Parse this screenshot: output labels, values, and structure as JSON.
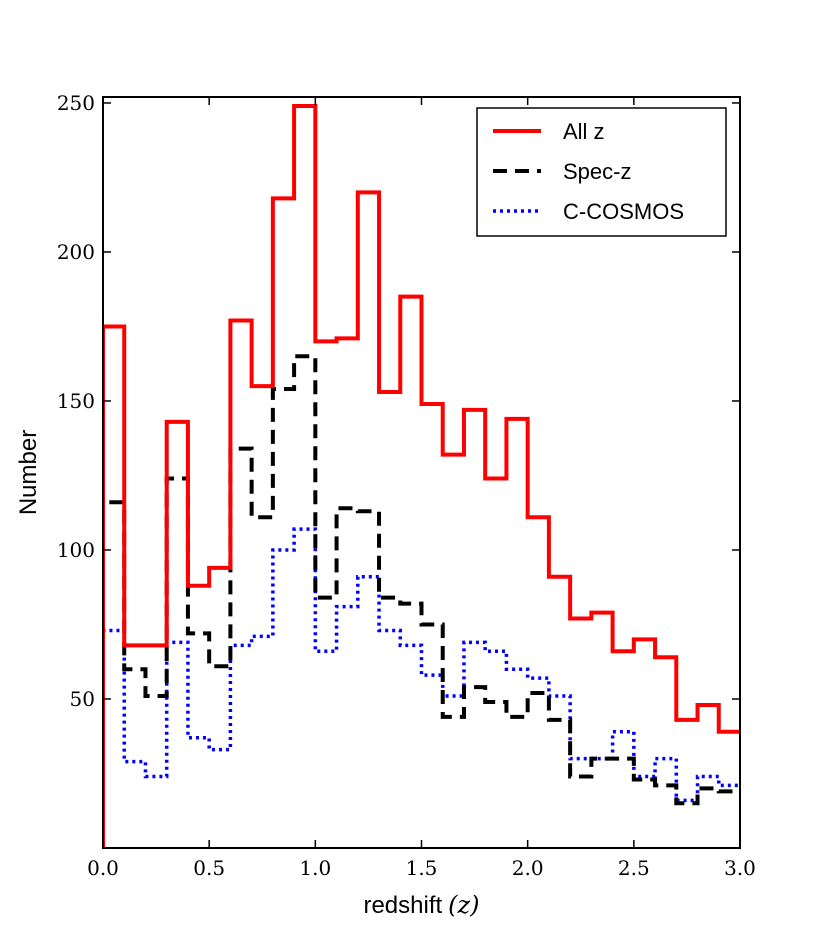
{
  "chart_data": {
    "type": "line",
    "subtype": "step-histogram",
    "title": "",
    "xlabel_text": "redshift",
    "xlabel_symbol": "(z)",
    "ylabel": "Number",
    "xlim": [
      0.0,
      3.0
    ],
    "ylim": [
      0,
      252
    ],
    "xticks": [
      0.0,
      0.5,
      1.0,
      1.5,
      2.0,
      2.5,
      3.0
    ],
    "xtick_labels": [
      "0.0",
      "0.5",
      "1.0",
      "1.5",
      "2.0",
      "2.5",
      "3.0"
    ],
    "yticks": [
      50,
      100,
      150,
      200,
      250
    ],
    "ytick_labels": [
      "50",
      "100",
      "150",
      "200",
      "250"
    ],
    "bin_edges": [
      0.0,
      0.1,
      0.2,
      0.3,
      0.4,
      0.5,
      0.6,
      0.7,
      0.8,
      0.9,
      1.0,
      1.1,
      1.2,
      1.3,
      1.4,
      1.5,
      1.6,
      1.7,
      1.8,
      1.9,
      2.0,
      2.1,
      2.2,
      2.3,
      2.4,
      2.5,
      2.6,
      2.7,
      2.8,
      2.9,
      3.0
    ],
    "legend_position": "top-right",
    "series": [
      {
        "name": "All z",
        "color": "#ff0000",
        "style": "solid",
        "values": [
          175,
          68,
          68,
          143,
          88,
          94,
          177,
          155,
          218,
          249,
          170,
          171,
          220,
          153,
          185,
          149,
          132,
          147,
          124,
          144,
          111,
          91,
          77,
          79,
          66,
          70,
          64,
          43,
          48,
          39
        ]
      },
      {
        "name": "Spec-z",
        "color": "#000000",
        "style": "dashed",
        "values": [
          116,
          60,
          51,
          124,
          72,
          61,
          134,
          111,
          154,
          165,
          84,
          114,
          113,
          84,
          82,
          75,
          44,
          54,
          49,
          44,
          52,
          43,
          24,
          30,
          30,
          23,
          21,
          15,
          20,
          19
        ]
      },
      {
        "name": "C-COSMOS",
        "color": "#0000ff",
        "style": "dotted",
        "values": [
          73,
          29,
          24,
          69,
          37,
          33,
          68,
          71,
          100,
          107,
          66,
          81,
          91,
          73,
          68,
          58,
          51,
          69,
          66,
          60,
          57,
          51,
          30,
          30,
          39,
          24,
          30,
          16,
          24,
          21
        ]
      }
    ]
  }
}
